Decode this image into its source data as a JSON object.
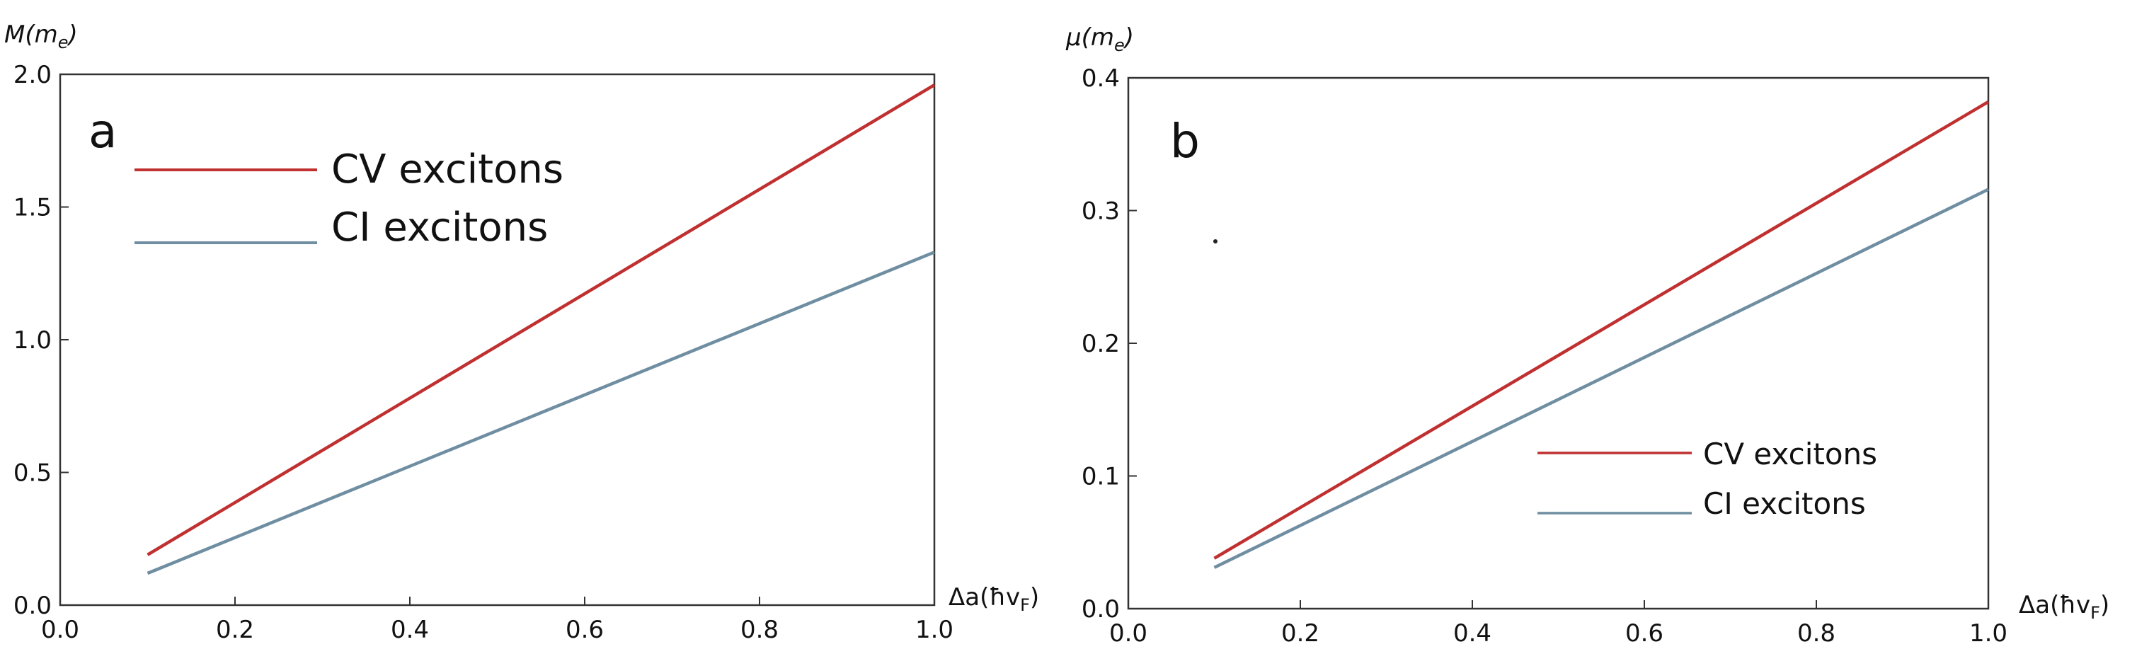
{
  "chart_data": [
    {
      "type": "line",
      "panel_label": "a",
      "ylabel": "M(m",
      "ylabel_sub": "e",
      "ylabel_close": ")",
      "xlabel": "Δa(ħv",
      "xlabel_sub": "F",
      "xlabel_close": ")",
      "xlim": [
        0.0,
        1.0
      ],
      "ylim": [
        0.0,
        2.0
      ],
      "xticks": [
        "0.0",
        "0.2",
        "0.4",
        "0.6",
        "0.8",
        "1.0"
      ],
      "yticks": [
        "0.0",
        "0.5",
        "1.0",
        "1.5",
        "2.0"
      ],
      "legend_position": "top-left",
      "series": [
        {
          "name": "CV excitons",
          "color": "#c03030",
          "x": [
            0.1,
            1.0
          ],
          "y": [
            0.19,
            1.96
          ]
        },
        {
          "name": "CI excitons",
          "color": "#6f8ea2",
          "x": [
            0.1,
            1.0
          ],
          "y": [
            0.12,
            1.33
          ]
        }
      ]
    },
    {
      "type": "line",
      "panel_label": "b",
      "ylabel": "μ(m",
      "ylabel_sub": "e",
      "ylabel_close": ")",
      "xlabel": "Δa(ħv",
      "xlabel_sub": "F",
      "xlabel_close": ")",
      "xlim": [
        0.0,
        1.0
      ],
      "ylim": [
        0.0,
        0.4
      ],
      "xticks": [
        "0.0",
        "0.2",
        "0.4",
        "0.6",
        "0.8",
        "1.0"
      ],
      "yticks": [
        "0.0",
        "0.1",
        "0.2",
        "0.3",
        "0.4"
      ],
      "legend_position": "lower-right",
      "series": [
        {
          "name": "CV excitons",
          "color": "#c03030",
          "x": [
            0.1,
            1.0
          ],
          "y": [
            0.038,
            0.382
          ]
        },
        {
          "name": "CI excitons",
          "color": "#6f8ea2",
          "x": [
            0.1,
            1.0
          ],
          "y": [
            0.031,
            0.316
          ]
        }
      ]
    }
  ]
}
